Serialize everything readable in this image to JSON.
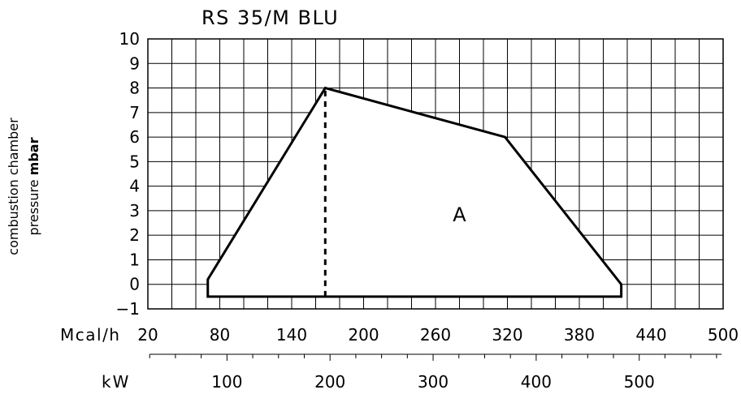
{
  "chart_data": {
    "type": "area",
    "title": "RS 35/M BLU",
    "ylabel_line1": "combustion chamber",
    "ylabel_line2_prefix": "pressure ",
    "ylabel_line2_unit": "mbar",
    "ylim": [
      -1,
      10
    ],
    "yticks": [
      -1,
      0,
      1,
      2,
      3,
      4,
      5,
      6,
      7,
      8,
      9,
      10
    ],
    "grid": true,
    "x_primary": {
      "unit": "Mcal/h",
      "range": [
        20,
        500
      ],
      "ticks": [
        20,
        80,
        140,
        200,
        260,
        320,
        380,
        440,
        500
      ]
    },
    "x_secondary": {
      "unit": "kW",
      "ticks": [
        100,
        200,
        300,
        400,
        500
      ]
    },
    "series": [
      {
        "name": "A",
        "x_unit": "Mcal/h",
        "x": [
          70,
          70,
          168,
          318,
          415,
          415,
          70
        ],
        "y": [
          -0.5,
          0.2,
          8,
          6,
          0,
          -0.5,
          -0.5
        ]
      }
    ],
    "annotations": [
      {
        "text": "A",
        "x": 280,
        "y": 2.9
      }
    ],
    "reference_line": {
      "style": "dashed",
      "x": 168,
      "y_from": -0.5,
      "y_to": 8
    }
  }
}
